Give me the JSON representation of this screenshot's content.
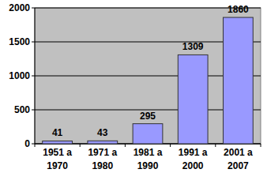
{
  "chart_data": {
    "type": "bar",
    "categories": [
      "1951 a 1970",
      "1971 a 1980",
      "1981 a 1990",
      "1991 a 2000",
      "2001 a 2007"
    ],
    "values": [
      41,
      43,
      295,
      1309,
      1860
    ],
    "color": "#9999ff",
    "ylim": [
      0,
      2000
    ],
    "yticks": [
      0,
      500,
      1000,
      1500,
      2000
    ],
    "grid": true,
    "data_labels": true
  }
}
